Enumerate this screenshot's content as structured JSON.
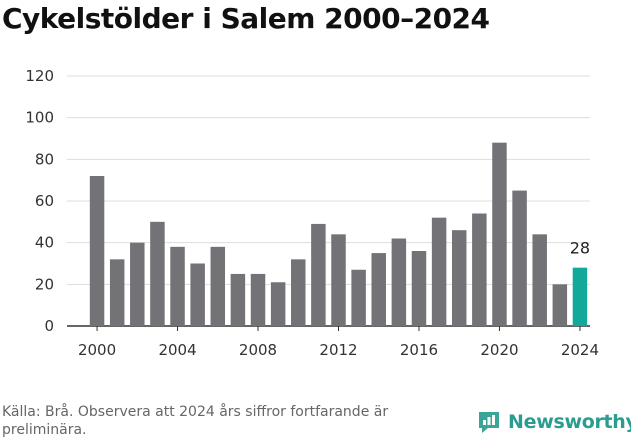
{
  "header": {
    "title": "Cykelstölder i Salem 2000–2024"
  },
  "footer": {
    "source": "Källa: Brå. Observera att 2024 års siffror fortfarande är preliminära.",
    "brand": "Newsworthy",
    "brand_icon": "newsworthy-logo-icon"
  },
  "colors": {
    "bar": "#737277",
    "highlight": "#12a89a",
    "grid": "#dddddd",
    "axis": "#333333"
  },
  "chart_data": {
    "type": "bar",
    "title": "Cykelstölder i Salem 2000–2024",
    "xlabel": "",
    "ylabel": "",
    "categories": [
      "2000",
      "2001",
      "2002",
      "2003",
      "2004",
      "2005",
      "2006",
      "2007",
      "2008",
      "2009",
      "2010",
      "2011",
      "2012",
      "2013",
      "2014",
      "2015",
      "2016",
      "2017",
      "2018",
      "2019",
      "2020",
      "2021",
      "2022",
      "2023",
      "2024"
    ],
    "values": [
      72,
      32,
      40,
      50,
      38,
      30,
      38,
      25,
      25,
      21,
      32,
      49,
      44,
      27,
      35,
      42,
      36,
      52,
      46,
      54,
      88,
      65,
      44,
      20,
      28
    ],
    "x_tick_labels": [
      "2000",
      "2004",
      "2008",
      "2012",
      "2016",
      "2020",
      "2024"
    ],
    "y_ticks": [
      0,
      20,
      40,
      60,
      80,
      100,
      120
    ],
    "ylim": [
      0,
      120
    ],
    "grid": "horizontal",
    "highlight": {
      "category": "2024",
      "label": "28"
    }
  }
}
